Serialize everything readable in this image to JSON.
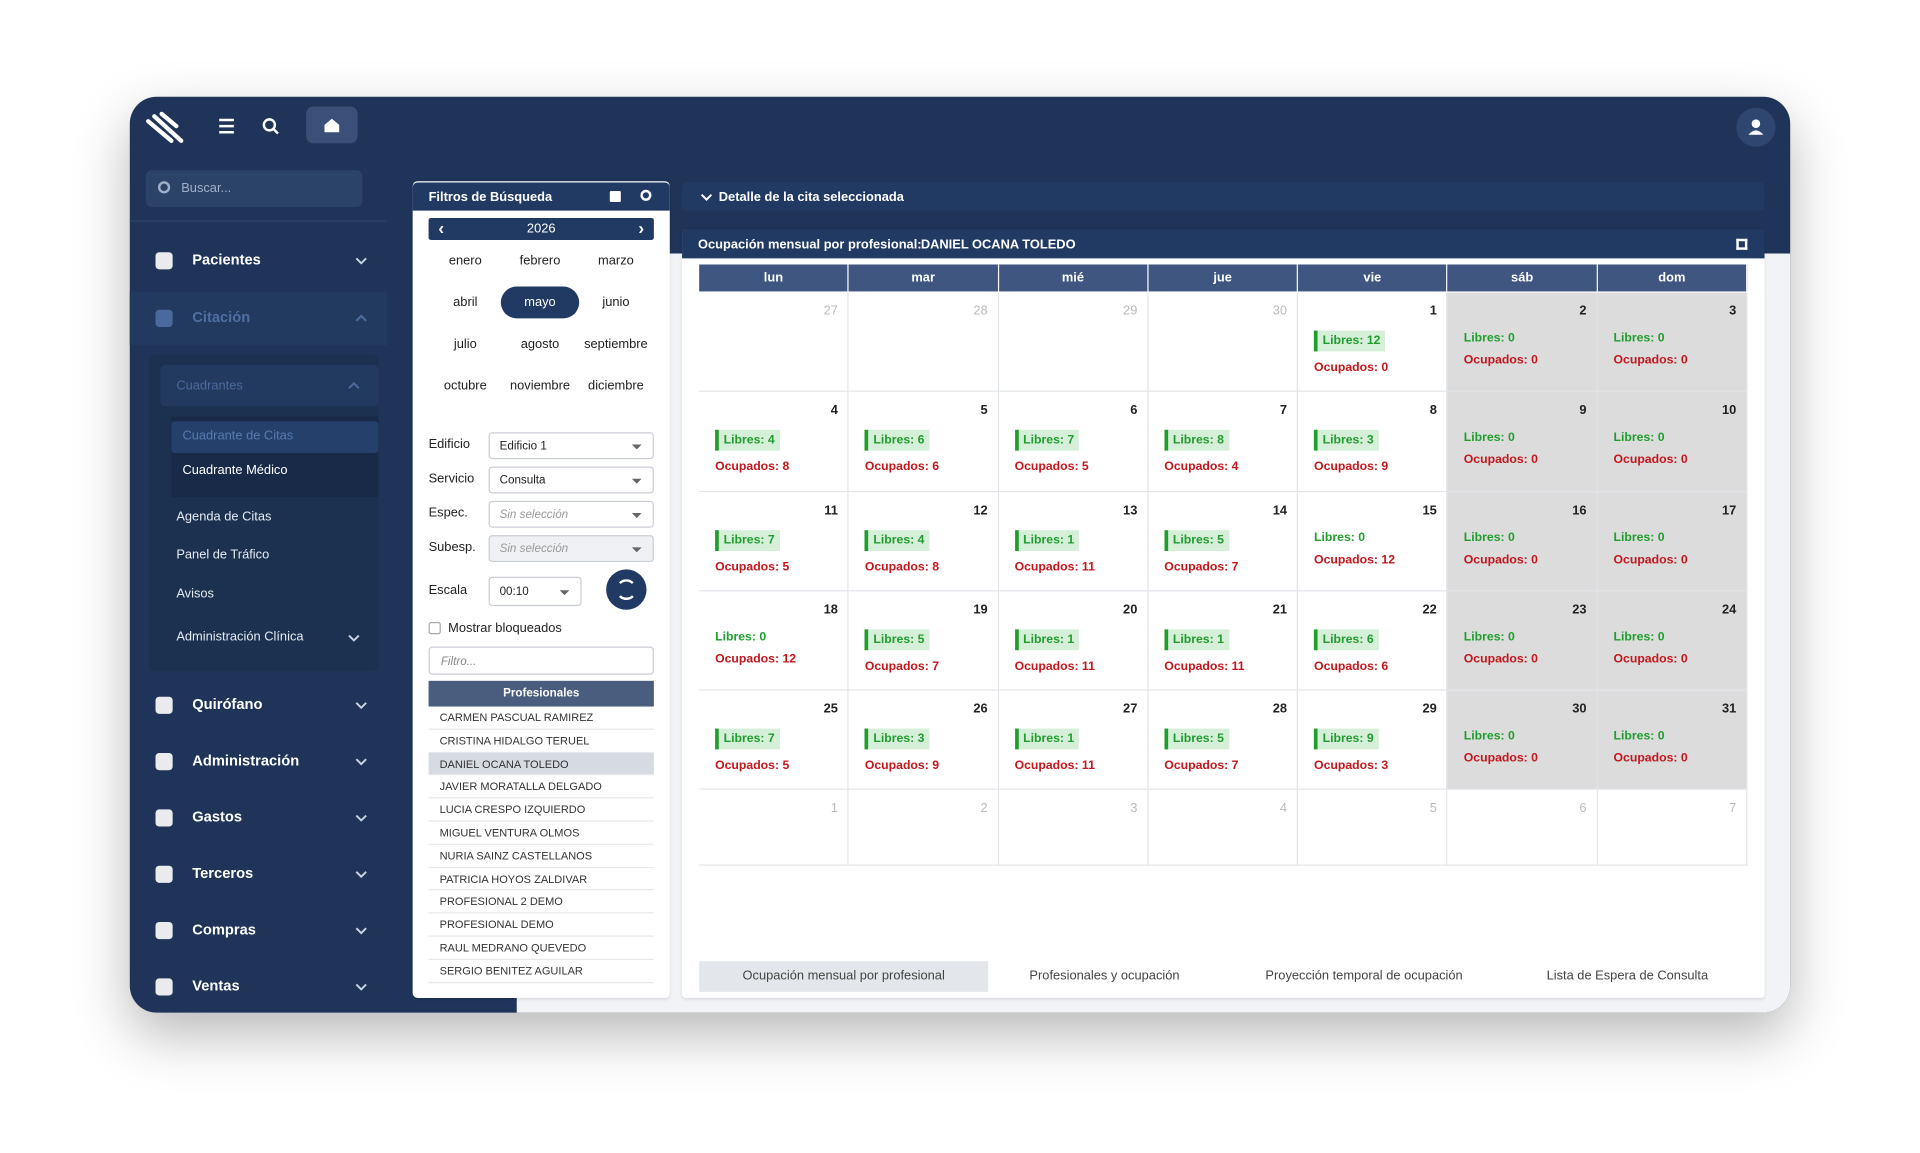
{
  "sidebar": {
    "search": "Buscar...",
    "items": [
      "Pacientes",
      "Citación",
      "Quirófano",
      "Administración",
      "Gastos",
      "Terceros",
      "Compras",
      "Ventas"
    ],
    "open_item": 1,
    "sub": {
      "group": "Cuadrantes",
      "group_items": [
        "Cuadrante de Citas",
        "Cuadrante Médico"
      ],
      "active_group_item": 0,
      "items": [
        "Agenda de Citas",
        "Panel de Tráfico",
        "Avisos",
        "Administración Clínica"
      ]
    }
  },
  "filters": {
    "title": "Filtros de Búsqueda",
    "year": 2026,
    "months": [
      "enero",
      "febrero",
      "marzo",
      "abril",
      "mayo",
      "junio",
      "julio",
      "agosto",
      "septiembre",
      "octubre",
      "noviembre",
      "diciembre"
    ],
    "selected_month": 4,
    "fields": [
      {
        "label": "Edificio",
        "value": "Edificio 1"
      },
      {
        "label": "Servicio",
        "value": "Consulta"
      },
      {
        "label": "Espec.",
        "placeholder": "Sin selección"
      },
      {
        "label": "Subesp.",
        "placeholder": "Sin selección"
      }
    ],
    "scale": {
      "label": "Escala",
      "value": "00:10"
    },
    "show_blocked": "Mostrar bloqueados",
    "filter_placeholder": "Filtro...",
    "professionals_title": "Profesionales",
    "professionals": [
      "CARMEN PASCUAL RAMIREZ",
      "CRISTINA HIDALGO TERUEL",
      "DANIEL OCANA TOLEDO",
      "JAVIER MORATALLA DELGADO",
      "LUCIA CRESPO IZQUIERDO",
      "MIGUEL VENTURA OLMOS",
      "NURIA SAINZ CASTELLANOS",
      "PATRICIA HOYOS ZALDIVAR",
      "PROFESIONAL 2 DEMO",
      "PROFESIONAL DEMO",
      "RAUL MEDRANO QUEVEDO",
      "SERGIO BENITEZ AGUILAR"
    ],
    "selected_professional": 2
  },
  "detail": {
    "title": "Detalle de la cita seleccionada"
  },
  "calendar": {
    "title": "Ocupación mensual por profesional:",
    "professional": "DANIEL OCANA TOLEDO",
    "weekdays": [
      "lun",
      "mar",
      "mié",
      "jue",
      "vie",
      "sáb",
      "dom"
    ],
    "libres_label": "Libres:",
    "ocupados_label": "Ocupados:",
    "weeks": [
      [
        {
          "day": 27
        },
        {
          "day": 28
        },
        {
          "day": 29
        },
        {
          "day": 30
        },
        {
          "day": 1,
          "libres": 12,
          "ocupados": 0
        },
        {
          "day": 2,
          "libres": 0,
          "ocupados": 0
        },
        {
          "day": 3,
          "libres": 0,
          "ocupados": 0
        }
      ],
      [
        {
          "day": 4,
          "libres": 4,
          "ocupados": 8
        },
        {
          "day": 5,
          "libres": 6,
          "ocupados": 6
        },
        {
          "day": 6,
          "libres": 7,
          "ocupados": 5
        },
        {
          "day": 7,
          "libres": 8,
          "ocupados": 4
        },
        {
          "day": 8,
          "libres": 3,
          "ocupados": 9
        },
        {
          "day": 9,
          "libres": 0,
          "ocupados": 0
        },
        {
          "day": 10,
          "libres": 0,
          "ocupados": 0
        }
      ],
      [
        {
          "day": 11,
          "libres": 7,
          "ocupados": 5
        },
        {
          "day": 12,
          "libres": 4,
          "ocupados": 8
        },
        {
          "day": 13,
          "libres": 1,
          "ocupados": 11
        },
        {
          "day": 14,
          "libres": 5,
          "ocupados": 7
        },
        {
          "day": 15,
          "libres": 0,
          "ocupados": 12
        },
        {
          "day": 16,
          "libres": 0,
          "ocupados": 0
        },
        {
          "day": 17,
          "libres": 0,
          "ocupados": 0
        }
      ],
      [
        {
          "day": 18,
          "libres": 0,
          "ocupados": 12
        },
        {
          "day": 19,
          "libres": 5,
          "ocupados": 7
        },
        {
          "day": 20,
          "libres": 1,
          "ocupados": 11
        },
        {
          "day": 21,
          "libres": 1,
          "ocupados": 11
        },
        {
          "day": 22,
          "libres": 6,
          "ocupados": 6
        },
        {
          "day": 23,
          "libres": 0,
          "ocupados": 0
        },
        {
          "day": 24,
          "libres": 0,
          "ocupados": 0
        }
      ],
      [
        {
          "day": 25,
          "libres": 7,
          "ocupados": 5
        },
        {
          "day": 26,
          "libres": 3,
          "ocupados": 9
        },
        {
          "day": 27,
          "libres": 1,
          "ocupados": 11
        },
        {
          "day": 28,
          "libres": 5,
          "ocupados": 7
        },
        {
          "day": 29,
          "libres": 9,
          "ocupados": 3
        },
        {
          "day": 30,
          "libres": 0,
          "ocupados": 0
        },
        {
          "day": 31,
          "libres": 0,
          "ocupados": 0
        }
      ],
      [
        {
          "day": 1
        },
        {
          "day": 2
        },
        {
          "day": 3
        },
        {
          "day": 4
        },
        {
          "day": 5
        },
        {
          "day": 6
        },
        {
          "day": 7
        }
      ]
    ]
  },
  "tabs": [
    "Ocupación mensual por profesional",
    "Profesionales y ocupación",
    "Proyección temporal de ocupación",
    "Lista de Espera de Consulta"
  ],
  "active_tab": 0
}
